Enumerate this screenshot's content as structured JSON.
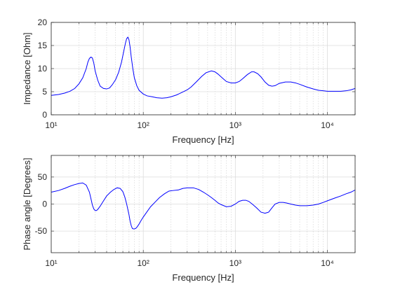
{
  "chart_data": [
    {
      "type": "line",
      "title": "",
      "xlabel": "Frequency [Hz]",
      "ylabel": "Impedance [Ohm]",
      "xscale": "log",
      "xlim": [
        10,
        20000
      ],
      "ylim": [
        0,
        20
      ],
      "grid": true,
      "legend": "none",
      "x_ticks": [
        10,
        100,
        1000,
        10000
      ],
      "y_ticks": [
        0,
        5,
        10,
        15,
        20
      ],
      "line_color": "#0000ff",
      "series": [
        {
          "x": [
            10,
            12,
            14,
            16,
            18,
            20,
            22,
            24,
            25,
            26,
            27,
            28,
            29,
            30,
            32,
            34,
            37,
            40,
            43,
            46,
            50,
            54,
            58,
            61,
            64,
            66,
            68,
            70,
            72,
            74,
            77,
            80,
            85,
            90,
            100,
            110,
            125,
            140,
            160,
            180,
            200,
            230,
            260,
            300,
            330,
            380,
            430,
            480,
            550,
            600,
            650,
            720,
            800,
            900,
            1000,
            1100,
            1200,
            1350,
            1500,
            1600,
            1750,
            1900,
            2100,
            2300,
            2500,
            2700,
            3000,
            3500,
            4000,
            4500,
            5000,
            6000,
            7000,
            8000,
            9000,
            10000,
            12000,
            14000,
            16000,
            18000,
            20000
          ],
          "y": [
            4.2,
            4.4,
            4.7,
            5.1,
            5.7,
            6.7,
            8.0,
            10.0,
            11.4,
            12.2,
            12.5,
            12.3,
            11.2,
            9.5,
            7.5,
            6.2,
            5.7,
            5.6,
            5.8,
            6.5,
            7.6,
            9.2,
            11.4,
            13.5,
            15.5,
            16.5,
            16.8,
            16.2,
            14.6,
            12.5,
            10.0,
            8.0,
            6.3,
            5.3,
            4.5,
            4.1,
            3.9,
            3.7,
            3.6,
            3.7,
            3.9,
            4.3,
            4.8,
            5.4,
            6.0,
            7.2,
            8.3,
            9.1,
            9.5,
            9.3,
            8.8,
            8.0,
            7.2,
            6.9,
            6.9,
            7.2,
            7.8,
            8.7,
            9.3,
            9.3,
            8.9,
            8.2,
            7.1,
            6.4,
            6.2,
            6.3,
            6.8,
            7.1,
            7.1,
            6.9,
            6.6,
            6.0,
            5.6,
            5.3,
            5.2,
            5.1,
            5.1,
            5.1,
            5.2,
            5.4,
            5.7
          ]
        }
      ]
    },
    {
      "type": "line",
      "title": "",
      "xlabel": "Frequency [Hz]",
      "ylabel": "Phase angle [Degrees]",
      "xscale": "log",
      "xlim": [
        10,
        20000
      ],
      "ylim": [
        -90,
        90
      ],
      "grid": true,
      "legend": "none",
      "x_ticks": [
        10,
        100,
        1000,
        10000
      ],
      "y_ticks": [
        -50,
        0,
        50
      ],
      "line_color": "#0000ff",
      "series": [
        {
          "x": [
            10,
            12,
            14,
            16,
            18,
            20,
            22,
            24,
            26,
            27,
            28,
            29,
            30,
            31,
            32,
            34,
            37,
            40,
            44,
            48,
            52,
            56,
            60,
            63,
            66,
            70,
            72,
            74,
            76,
            78,
            80,
            83,
            86,
            90,
            95,
            100,
            110,
            120,
            135,
            150,
            170,
            190,
            210,
            240,
            270,
            300,
            350,
            400,
            450,
            500,
            550,
            600,
            650,
            700,
            800,
            900,
            1000,
            1100,
            1200,
            1300,
            1400,
            1550,
            1700,
            1900,
            2100,
            2300,
            2500,
            2700,
            3000,
            3300,
            3600,
            4000,
            4500,
            5000,
            6000,
            7000,
            8000,
            9000,
            10000,
            12000,
            14000,
            16000,
            18000,
            20000
          ],
          "y": [
            22,
            25,
            29,
            33,
            36,
            38,
            39,
            35,
            22,
            10,
            -2,
            -9,
            -12,
            -12,
            -10,
            -4,
            6,
            15,
            22,
            27,
            30,
            29,
            23,
            13,
            0,
            -20,
            -32,
            -40,
            -45,
            -46,
            -46,
            -45,
            -42,
            -37,
            -30,
            -24,
            -14,
            -5,
            4,
            12,
            19,
            24,
            25,
            26,
            29,
            30,
            30,
            27,
            22,
            17,
            12,
            7,
            2,
            -1,
            -5,
            -4,
            0,
            5,
            7,
            7,
            5,
            -1,
            -7,
            -15,
            -17,
            -15,
            -7,
            0,
            3,
            3,
            2,
            0,
            -2,
            -3,
            -3,
            -2,
            0,
            3,
            6,
            11,
            15,
            19,
            22,
            26
          ]
        }
      ]
    }
  ]
}
